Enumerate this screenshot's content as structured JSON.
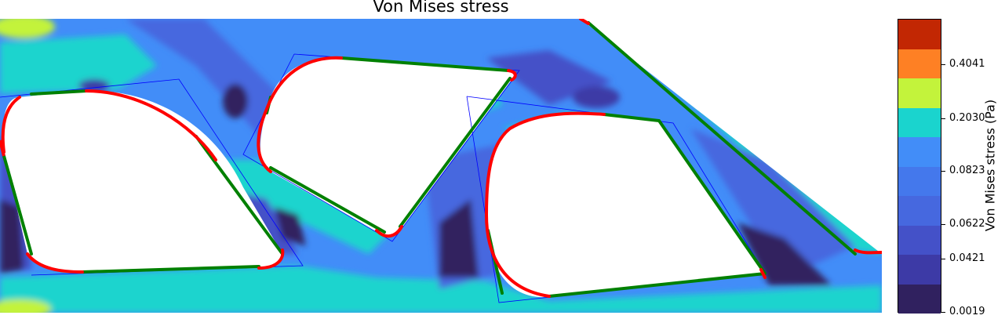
{
  "chart_data": {
    "type": "heatmap",
    "title": "Von Mises stress",
    "colorbar": {
      "label": "Von Mises stress (Pa)",
      "tick_labels": [
        "0.0019",
        "0.0421",
        "0.0622",
        "0.0823",
        "0.2030",
        "0.4041"
      ],
      "levels": [
        {
          "color": "#30215f"
        },
        {
          "color": "#3d3aa6"
        },
        {
          "color": "#4451c8"
        },
        {
          "color": "#4668df"
        },
        {
          "color": "#4478ec"
        },
        {
          "color": "#428df8"
        },
        {
          "color": "#1ad4ce"
        },
        {
          "color": "#c3f33b"
        },
        {
          "color": "#fe8024"
        },
        {
          "color": "#c22703"
        }
      ]
    },
    "boundary_colors": {
      "fitted_contour": "#ff0000",
      "straight_edges": "#008000",
      "reference_polygon": "#0000ff"
    }
  }
}
